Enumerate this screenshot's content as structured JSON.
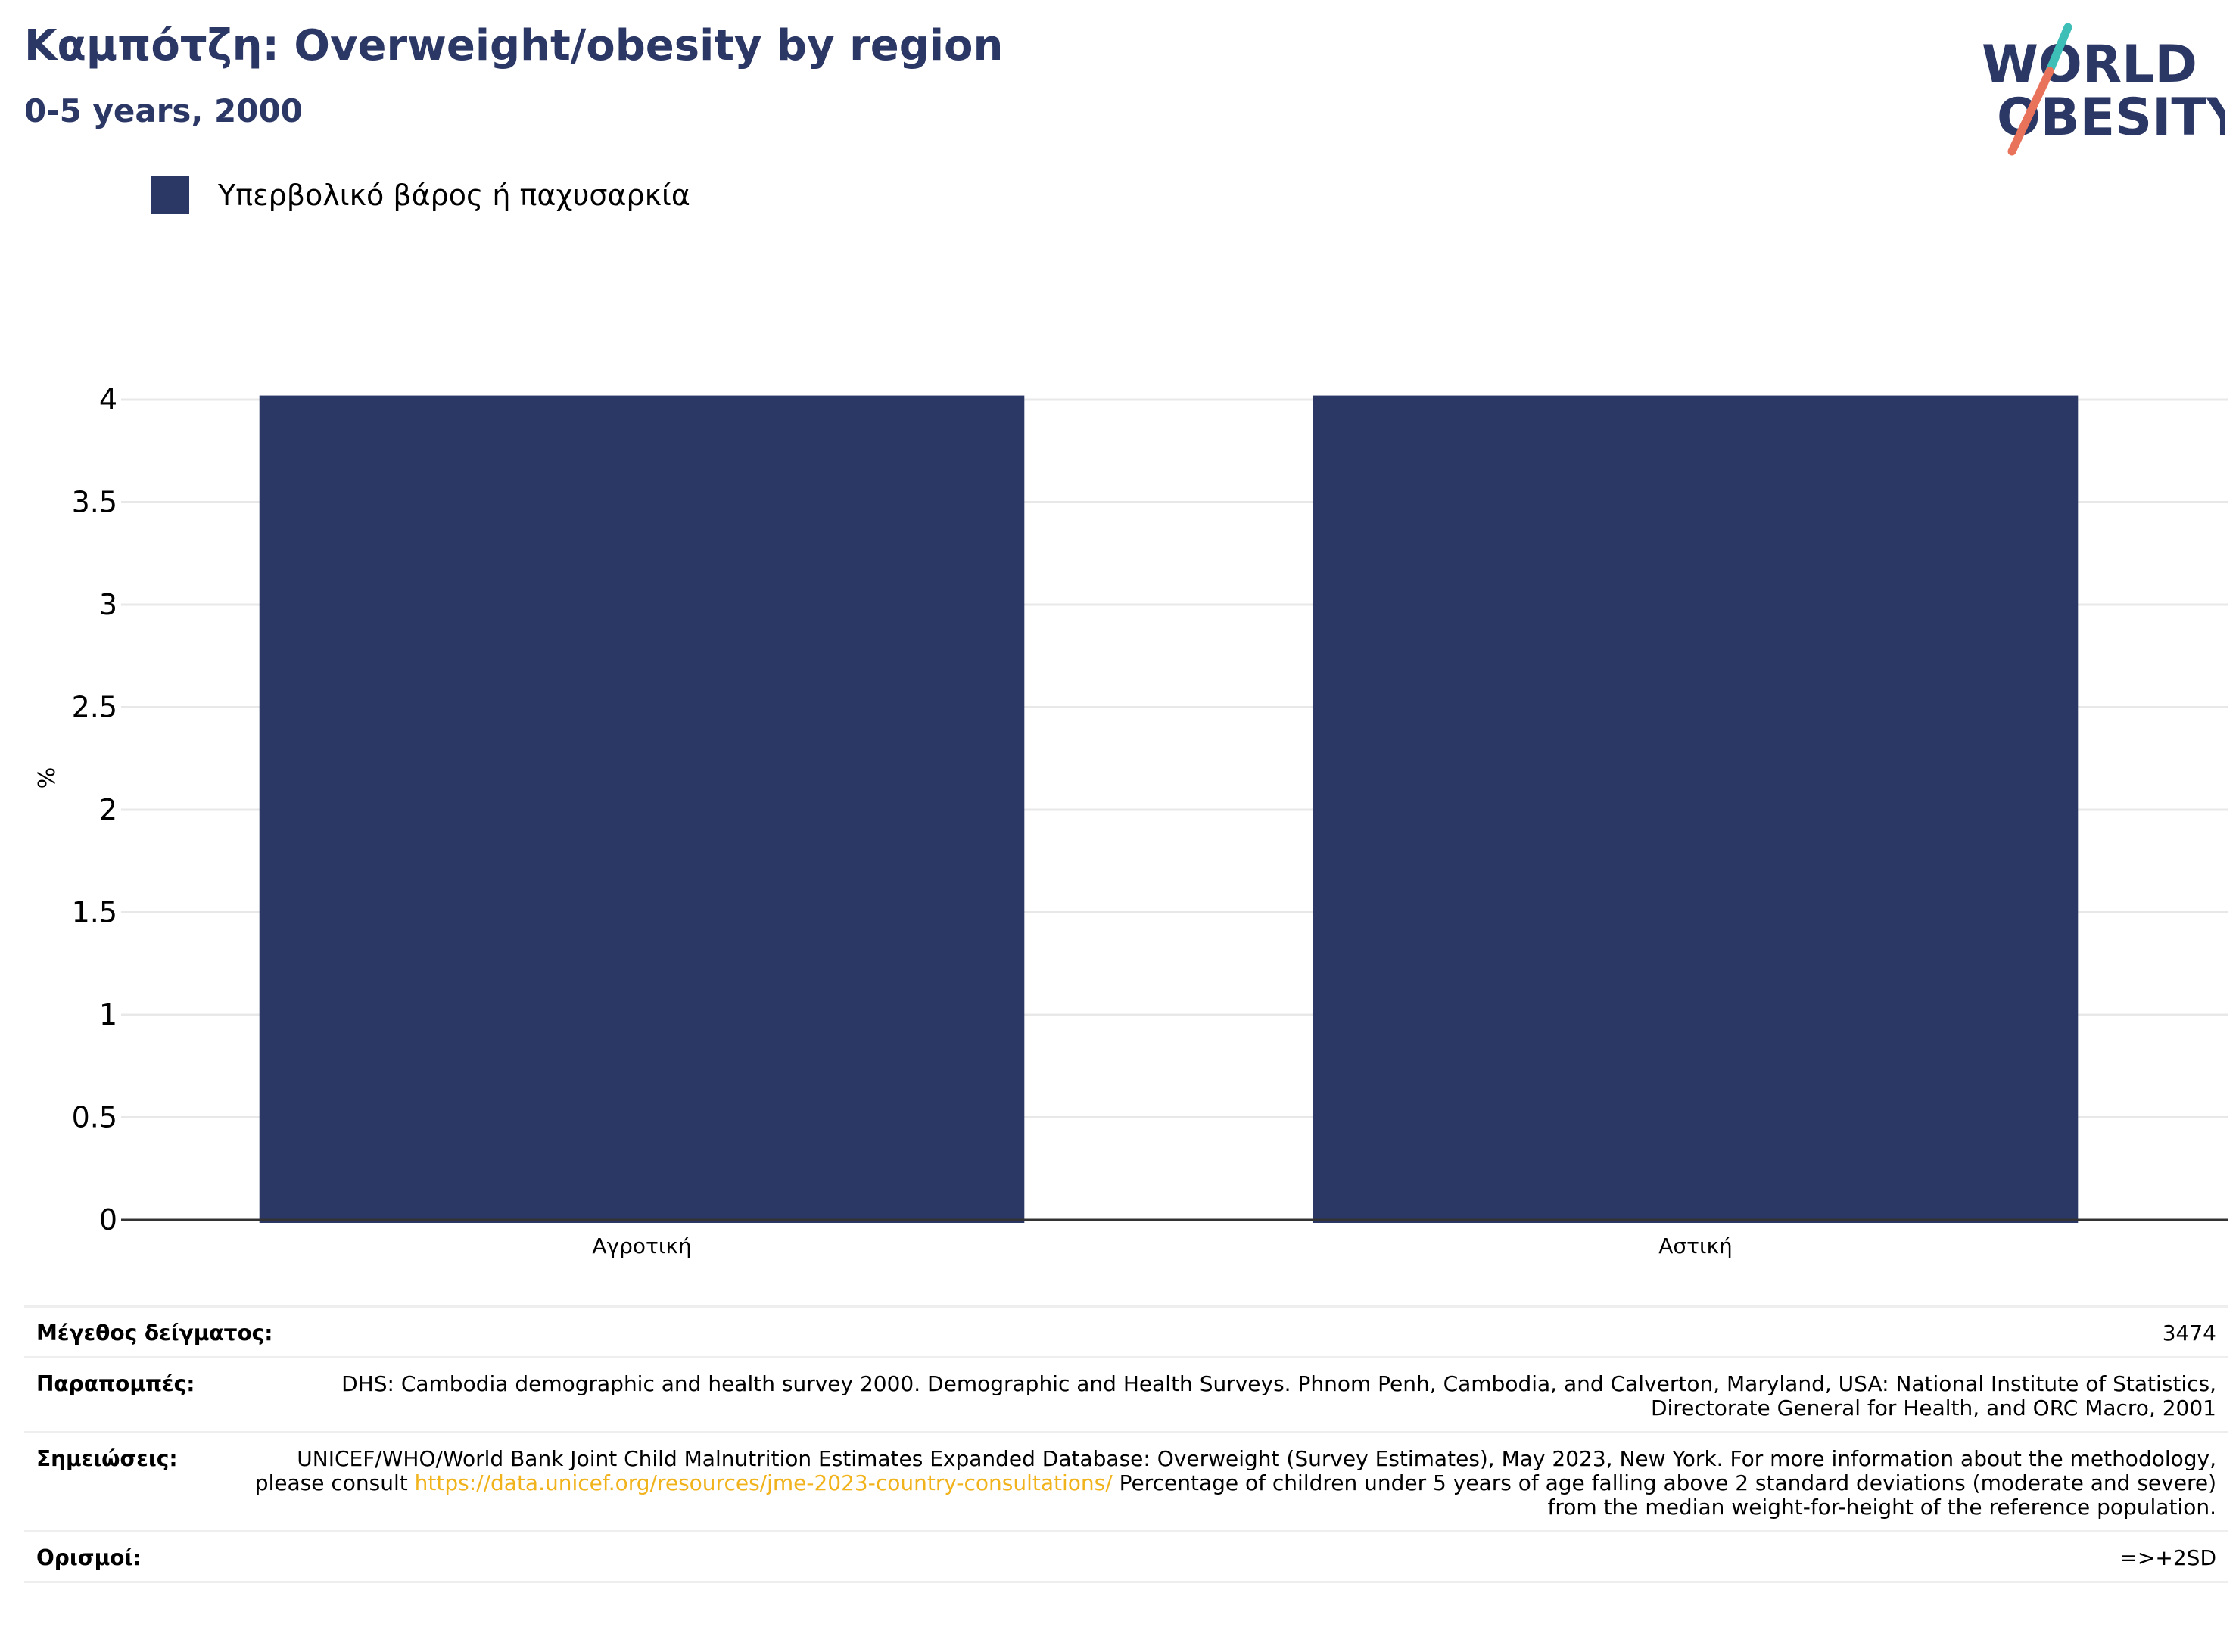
{
  "header": {
    "title": "Καμπότζη: Overweight/obesity by region",
    "subtitle": "0-5 years, 2000"
  },
  "logo": {
    "line1": "WORLD",
    "line2": "OBESITY",
    "colors": {
      "text": "#2b3764",
      "teal": "#3dbfb8",
      "coral": "#e8735a"
    }
  },
  "legend": {
    "label": "Υπερβολικό βάρος ή παχυσαρκία",
    "color": "#2b3764"
  },
  "chart_data": {
    "type": "bar",
    "categories": [
      "Αγροτική",
      "Αστική"
    ],
    "series": [
      {
        "name": "Υπερβολικό βάρος ή παχυσαρκία",
        "values": [
          4.02,
          4.02
        ],
        "color": "#2b3764"
      }
    ],
    "xlabel": "",
    "ylabel": "%",
    "ylim": [
      0,
      4.2
    ],
    "yticks": [
      0,
      0.5,
      1,
      1.5,
      2,
      2.5,
      3,
      3.5,
      4
    ],
    "ytick_labels": [
      "0",
      "0.5",
      "1",
      "1.5",
      "2",
      "2.5",
      "3",
      "3.5",
      "4"
    ],
    "grid": true,
    "legend_position": "top-left"
  },
  "info": {
    "sample_label": "Μέγεθος δείγματος:",
    "sample_value": "3474",
    "refs_label": "Παραπομπές:",
    "refs_value": "DHS: Cambodia demographic and health survey 2000. Demographic and Health Surveys. Phnom Penh, Cambodia, and Calverton, Maryland, USA: National Institute of Statistics, Directorate General for Health, and ORC Macro, 2001",
    "notes_label": "Σημειώσεις:",
    "notes_before": "UNICEF/WHO/World Bank Joint Child Malnutrition Estimates Expanded Database: Overweight (Survey Estimates), May 2023, New York. For more information about the methodology, please consult",
    "notes_link": "https://data.unicef.org/resources/jme-2023-country-consultations/",
    "notes_after": "Percentage of children under 5 years of age falling above 2 standard deviations (moderate and severe) from the median weight-for-height of the reference population.",
    "defs_label": "Ορισμοί:",
    "defs_value": "=>+2SD"
  }
}
